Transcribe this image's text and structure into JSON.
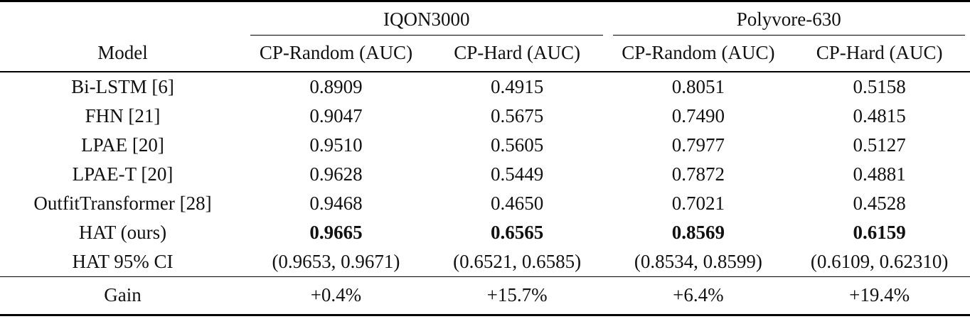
{
  "table": {
    "groups": [
      "IQON3000",
      "Polyvore-630"
    ],
    "model_header": "Model",
    "columns": [
      "CP-Random (AUC)",
      "CP-Hard (AUC)",
      "CP-Random (AUC)",
      "CP-Hard (AUC)"
    ],
    "rows": [
      {
        "model": "Bi-LSTM [6]",
        "values": [
          "0.8909",
          "0.4915",
          "0.8051",
          "0.5158"
        ]
      },
      {
        "model": "FHN [21]",
        "values": [
          "0.9047",
          "0.5675",
          "0.7490",
          "0.4815"
        ]
      },
      {
        "model": "LPAE [20]",
        "values": [
          "0.9510",
          "0.5605",
          "0.7977",
          "0.5127"
        ]
      },
      {
        "model": "LPAE-T [20]",
        "values": [
          "0.9628",
          "0.5449",
          "0.7872",
          "0.4881"
        ]
      },
      {
        "model": "OutfitTransformer [28]",
        "values": [
          "0.9468",
          "0.4650",
          "0.7021",
          "0.4528"
        ]
      },
      {
        "model": "HAT (ours)",
        "values": [
          "0.9665",
          "0.6565",
          "0.8569",
          "0.6159"
        ]
      },
      {
        "model": "HAT 95% CI",
        "values": [
          "(0.9653, 0.9671)",
          "(0.6521, 0.6585)",
          "(0.8534, 0.8599)",
          "(0.6109, 0.62310)"
        ]
      }
    ],
    "gain": {
      "model": "Gain",
      "values": [
        "+0.4%",
        "+15.7%",
        "+6.4%",
        "+19.4%"
      ]
    }
  },
  "colors": {
    "text": "#111111",
    "rule": "#000000",
    "background": "#ffffff"
  }
}
